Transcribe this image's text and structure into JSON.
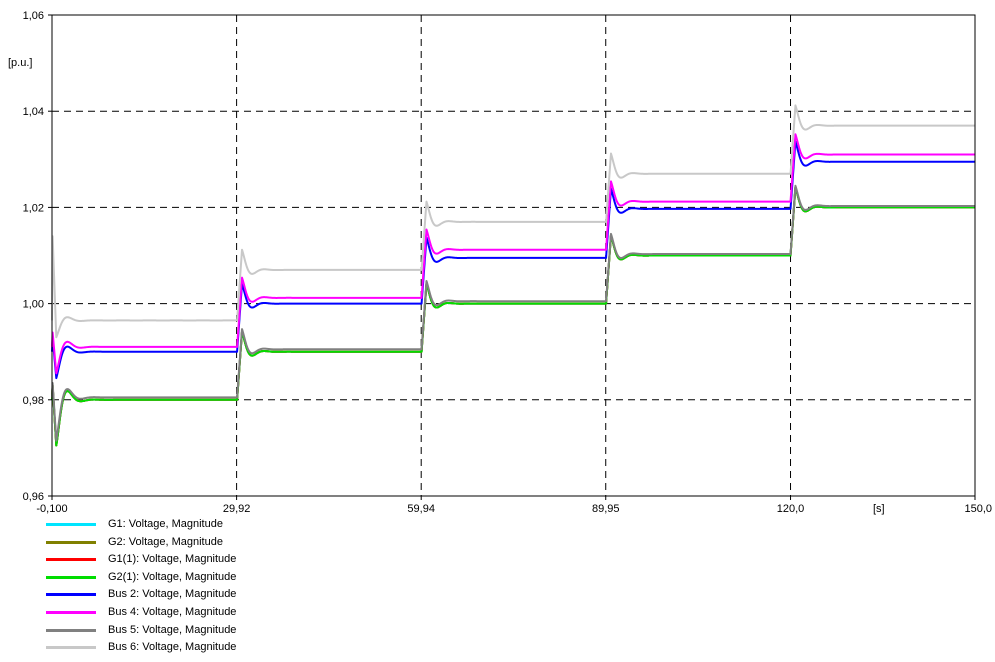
{
  "chart_data": {
    "type": "line",
    "ylabel": "[p.u.]",
    "xlabel": "[s]",
    "xlim": [
      -0.1,
      150.0
    ],
    "ylim": [
      0.96,
      1.06
    ],
    "x_ticks": [
      "-0,100",
      "29,92",
      "59,94",
      "89,95",
      "120,0",
      "150,0"
    ],
    "x_tick_values": [
      -0.1,
      29.92,
      59.94,
      89.95,
      120.0,
      150.0
    ],
    "y_ticks": [
      "0,96",
      "0,98",
      "1,00",
      "1,02",
      "1,04",
      "1,06"
    ],
    "y_tick_values": [
      0.96,
      0.98,
      1.0,
      1.02,
      1.04,
      1.06
    ],
    "grid": true,
    "legend_position": "bottom-left",
    "step_times": [
      0.0,
      30.0,
      60.0,
      90.0,
      120.0
    ],
    "series": [
      {
        "name": "G1: Voltage, Magnitude",
        "color": "#00e5ff",
        "levels": [
          0.98,
          0.99,
          1.0,
          1.01,
          1.02
        ],
        "peak_deviation": [
          0.003,
          0.0042,
          0.0042,
          0.0042,
          0.0042
        ],
        "undershoot": [
          -0.0095,
          -0.0015,
          -0.0015,
          -0.0015,
          -0.0015
        ]
      },
      {
        "name": "G2: Voltage, Magnitude",
        "color": "#808000",
        "levels": [
          0.98,
          0.99,
          1.0,
          1.01,
          1.02
        ],
        "peak_deviation": [
          0.003,
          0.0042,
          0.0042,
          0.0042,
          0.0042
        ],
        "undershoot": [
          -0.0095,
          -0.0015,
          -0.0015,
          -0.0015,
          -0.0015
        ]
      },
      {
        "name": "G1(1): Voltage, Magnitude",
        "color": "#ff0000",
        "levels": [
          0.98,
          0.99,
          1.0,
          1.01,
          1.02
        ],
        "peak_deviation": [
          0.003,
          0.0042,
          0.0042,
          0.0042,
          0.0042
        ],
        "undershoot": [
          -0.0095,
          -0.0015,
          -0.0015,
          -0.0015,
          -0.0015
        ]
      },
      {
        "name": "G2(1): Voltage, Magnitude",
        "color": "#00dd00",
        "levels": [
          0.98,
          0.99,
          1.0,
          1.01,
          1.02
        ],
        "peak_deviation": [
          0.003,
          0.0042,
          0.0042,
          0.0042,
          0.0042
        ],
        "undershoot": [
          -0.0095,
          -0.0015,
          -0.0015,
          -0.0015,
          -0.0015
        ]
      },
      {
        "name": "Bus 2: Voltage, Magnitude",
        "color": "#0000ff",
        "levels": [
          0.99,
          1.0,
          1.0095,
          1.0197,
          1.0295
        ],
        "peak_deviation": [
          0.003,
          0.0042,
          0.0042,
          0.0042,
          0.0042
        ],
        "undershoot": [
          -0.0055,
          -0.0015,
          -0.0015,
          -0.0015,
          -0.0015
        ]
      },
      {
        "name": "Bus 4: Voltage, Magnitude",
        "color": "#ff00ff",
        "levels": [
          0.991,
          1.0012,
          1.0112,
          1.0212,
          1.031
        ],
        "peak_deviation": [
          0.003,
          0.0042,
          0.0042,
          0.0042,
          0.0042
        ],
        "undershoot": [
          -0.0055,
          -0.0015,
          -0.0015,
          -0.0015,
          -0.0015
        ]
      },
      {
        "name": "Bus 5: Voltage, Magnitude",
        "color": "#808080",
        "levels": [
          0.9805,
          0.9905,
          1.0005,
          1.0103,
          1.0203
        ],
        "peak_deviation": [
          0.003,
          0.0042,
          0.0042,
          0.0042,
          0.0042
        ],
        "undershoot": [
          -0.009,
          -0.0015,
          -0.0015,
          -0.0015,
          -0.0015
        ]
      },
      {
        "name": "Bus 6: Voltage, Magnitude",
        "color": "#c8c8c8",
        "levels": [
          0.9965,
          1.007,
          1.017,
          1.027,
          1.037
        ],
        "peak_deviation": [
          0.0175,
          0.0042,
          0.0042,
          0.0042,
          0.0042
        ],
        "undershoot": [
          -0.0035,
          -0.0015,
          -0.0015,
          -0.0015,
          -0.0015
        ]
      }
    ]
  }
}
